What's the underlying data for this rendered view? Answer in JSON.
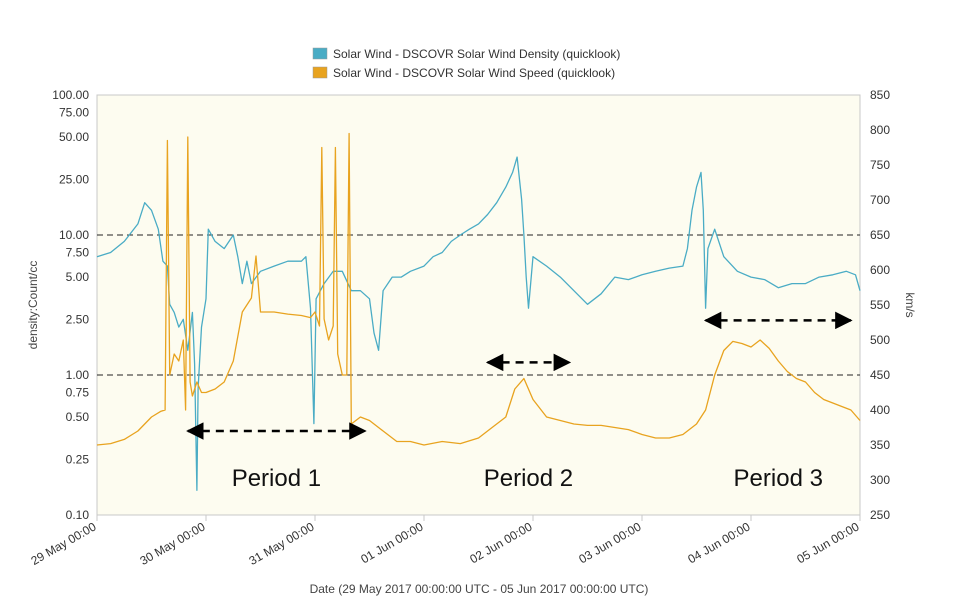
{
  "chart_data": {
    "type": "line",
    "title": "",
    "background": "#fdfcf0",
    "legend": {
      "placement": "top-center",
      "entries": [
        {
          "label": "Solar Wind - DSCOVR Solar Wind Density (quicklook)",
          "color": "#4aacc5"
        },
        {
          "label": "Solar Wind - DSCOVR Solar Wind Speed (quicklook)",
          "color": "#e8a31f"
        }
      ]
    },
    "xlabel": "Date (29 May 2017 00:00:00 UTC - 05 Jun 2017 00:00:00 UTC)",
    "x_ticks": [
      "29 May 00:00",
      "30 May 00:00",
      "31 May 00:00",
      "01 Jun 00:00",
      "02 Jun 00:00",
      "03 Jun 00:00",
      "04 Jun 00:00",
      "05 Jun 00:00"
    ],
    "xlim": [
      "2017-05-29 00:00",
      "2017-06-05 00:00"
    ],
    "y_left": {
      "label": "density:Count/cc",
      "scale": "log",
      "lim": [
        0.1,
        100
      ],
      "ticks": [
        {
          "value": 0.1,
          "label": "0.10"
        },
        {
          "value": 0.25,
          "label": "0.25"
        },
        {
          "value": 0.5,
          "label": "0.50"
        },
        {
          "value": 0.75,
          "label": "0.75"
        },
        {
          "value": 1,
          "label": "1.00"
        },
        {
          "value": 2.5,
          "label": "2.50"
        },
        {
          "value": 5,
          "label": "5.00"
        },
        {
          "value": 7.5,
          "label": "7.50"
        },
        {
          "value": 10,
          "label": "10.00"
        },
        {
          "value": 25,
          "label": "25.00"
        },
        {
          "value": 50,
          "label": "50.00"
        },
        {
          "value": 75,
          "label": "75.00"
        },
        {
          "value": 100,
          "label": "100.00"
        }
      ]
    },
    "y_right": {
      "label": "km/s",
      "scale": "linear",
      "lim": [
        250,
        850
      ],
      "ticks": [
        "250",
        "300",
        "350",
        "400",
        "450",
        "500",
        "550",
        "600",
        "650",
        "700",
        "750",
        "800",
        "850"
      ]
    },
    "reference_lines": [
      {
        "axis": "left",
        "value": 10,
        "style": "dashed"
      },
      {
        "axis": "left",
        "value": 1,
        "style": "dashed"
      }
    ],
    "series": [
      {
        "name": "Solar Wind - DSCOVR Solar Wind Density (quicklook)",
        "axis": "left",
        "color": "#4aacc5",
        "points": [
          [
            "2017-05-29 00:00",
            7
          ],
          [
            "2017-05-29 03:00",
            7.5
          ],
          [
            "2017-05-29 06:00",
            9
          ],
          [
            "2017-05-29 09:00",
            12
          ],
          [
            "2017-05-29 10:30",
            17
          ],
          [
            "2017-05-29 12:00",
            15
          ],
          [
            "2017-05-29 13:30",
            11
          ],
          [
            "2017-05-29 14:30",
            6.5
          ],
          [
            "2017-05-29 15:30",
            6
          ],
          [
            "2017-05-29 16:00",
            3.2
          ],
          [
            "2017-05-29 17:00",
            2.8
          ],
          [
            "2017-05-29 18:00",
            2.2
          ],
          [
            "2017-05-29 19:00",
            2.5
          ],
          [
            "2017-05-29 20:00",
            1.5
          ],
          [
            "2017-05-29 21:00",
            2.8
          ],
          [
            "2017-05-29 21:30",
            1.2
          ],
          [
            "2017-05-29 22:00",
            0.15
          ],
          [
            "2017-05-29 22:15",
            0.8
          ],
          [
            "2017-05-29 23:00",
            2.2
          ],
          [
            "2017-05-30 00:00",
            3.5
          ],
          [
            "2017-05-30 00:30",
            11
          ],
          [
            "2017-05-30 02:00",
            9
          ],
          [
            "2017-05-30 04:00",
            8
          ],
          [
            "2017-05-30 06:00",
            10
          ],
          [
            "2017-05-30 07:00",
            7
          ],
          [
            "2017-05-30 08:00",
            4.5
          ],
          [
            "2017-05-30 09:00",
            6.5
          ],
          [
            "2017-05-30 10:00",
            4.5
          ],
          [
            "2017-05-30 12:00",
            5.5
          ],
          [
            "2017-05-30 15:00",
            6
          ],
          [
            "2017-05-30 18:00",
            6.5
          ],
          [
            "2017-05-30 21:00",
            6.5
          ],
          [
            "2017-05-30 22:00",
            7
          ],
          [
            "2017-05-30 23:00",
            3
          ],
          [
            "2017-05-30 23:45",
            0.45
          ],
          [
            "2017-05-31 00:15",
            3.5
          ],
          [
            "2017-05-31 02:00",
            4.5
          ],
          [
            "2017-05-31 04:00",
            5.5
          ],
          [
            "2017-05-31 06:00",
            5.5
          ],
          [
            "2017-05-31 08:00",
            4
          ],
          [
            "2017-05-31 10:00",
            4
          ],
          [
            "2017-05-31 12:00",
            3.5
          ],
          [
            "2017-05-31 13:00",
            2
          ],
          [
            "2017-05-31 14:00",
            1.5
          ],
          [
            "2017-05-31 15:00",
            4
          ],
          [
            "2017-05-31 17:00",
            5
          ],
          [
            "2017-05-31 19:00",
            5
          ],
          [
            "2017-05-31 21:00",
            5.5
          ],
          [
            "2017-06-01 00:00",
            6
          ],
          [
            "2017-06-01 02:00",
            7
          ],
          [
            "2017-06-01 04:00",
            7.5
          ],
          [
            "2017-06-01 06:00",
            9
          ],
          [
            "2017-06-01 08:00",
            10
          ],
          [
            "2017-06-01 10:00",
            11
          ],
          [
            "2017-06-01 12:00",
            12
          ],
          [
            "2017-06-01 14:00",
            14
          ],
          [
            "2017-06-01 16:00",
            17
          ],
          [
            "2017-06-01 18:00",
            22
          ],
          [
            "2017-06-01 19:30",
            28
          ],
          [
            "2017-06-01 20:30",
            36
          ],
          [
            "2017-06-01 21:30",
            18
          ],
          [
            "2017-06-01 22:00",
            10
          ],
          [
            "2017-06-01 22:30",
            5
          ],
          [
            "2017-06-01 23:00",
            3
          ],
          [
            "2017-06-02 00:00",
            7
          ],
          [
            "2017-06-02 03:00",
            6
          ],
          [
            "2017-06-02 06:00",
            5
          ],
          [
            "2017-06-02 09:00",
            4
          ],
          [
            "2017-06-02 12:00",
            3.2
          ],
          [
            "2017-06-02 15:00",
            3.8
          ],
          [
            "2017-06-02 18:00",
            5
          ],
          [
            "2017-06-02 21:00",
            4.8
          ],
          [
            "2017-06-03 00:00",
            5.2
          ],
          [
            "2017-06-03 03:00",
            5.5
          ],
          [
            "2017-06-03 06:00",
            5.8
          ],
          [
            "2017-06-03 09:00",
            6
          ],
          [
            "2017-06-03 10:00",
            8
          ],
          [
            "2017-06-03 11:00",
            15
          ],
          [
            "2017-06-03 12:00",
            22
          ],
          [
            "2017-06-03 13:00",
            28
          ],
          [
            "2017-06-03 13:30",
            15
          ],
          [
            "2017-06-03 14:00",
            3
          ],
          [
            "2017-06-03 14:30",
            8
          ],
          [
            "2017-06-03 16:00",
            11
          ],
          [
            "2017-06-03 18:00",
            7
          ],
          [
            "2017-06-03 21:00",
            5.5
          ],
          [
            "2017-06-04 00:00",
            5
          ],
          [
            "2017-06-04 03:00",
            4.8
          ],
          [
            "2017-06-04 06:00",
            4.2
          ],
          [
            "2017-06-04 09:00",
            4.5
          ],
          [
            "2017-06-04 12:00",
            4.5
          ],
          [
            "2017-06-04 15:00",
            5
          ],
          [
            "2017-06-04 18:00",
            5.2
          ],
          [
            "2017-06-04 21:00",
            5.5
          ],
          [
            "2017-06-04 23:00",
            5.2
          ],
          [
            "2017-06-05 00:00",
            4
          ]
        ]
      },
      {
        "name": "Solar Wind - DSCOVR Solar Wind Speed (quicklook)",
        "axis": "right",
        "color": "#e8a31f",
        "points": [
          [
            "2017-05-29 00:00",
            350
          ],
          [
            "2017-05-29 03:00",
            352
          ],
          [
            "2017-05-29 06:00",
            358
          ],
          [
            "2017-05-29 09:00",
            370
          ],
          [
            "2017-05-29 12:00",
            390
          ],
          [
            "2017-05-29 14:00",
            398
          ],
          [
            "2017-05-29 15:00",
            400
          ],
          [
            "2017-05-29 15:30",
            785
          ],
          [
            "2017-05-29 16:00",
            450
          ],
          [
            "2017-05-29 17:00",
            480
          ],
          [
            "2017-05-29 18:00",
            470
          ],
          [
            "2017-05-29 19:00",
            500
          ],
          [
            "2017-05-29 19:30",
            400
          ],
          [
            "2017-05-29 20:00",
            790
          ],
          [
            "2017-05-29 20:30",
            440
          ],
          [
            "2017-05-29 21:00",
            420
          ],
          [
            "2017-05-29 22:00",
            440
          ],
          [
            "2017-05-29 23:00",
            425
          ],
          [
            "2017-05-30 00:00",
            425
          ],
          [
            "2017-05-30 02:00",
            430
          ],
          [
            "2017-05-30 04:00",
            440
          ],
          [
            "2017-05-30 06:00",
            470
          ],
          [
            "2017-05-30 08:00",
            540
          ],
          [
            "2017-05-30 10:00",
            560
          ],
          [
            "2017-05-30 11:00",
            620
          ],
          [
            "2017-05-30 12:00",
            540
          ],
          [
            "2017-05-30 15:00",
            540
          ],
          [
            "2017-05-30 18:00",
            537
          ],
          [
            "2017-05-30 21:00",
            535
          ],
          [
            "2017-05-30 23:00",
            532
          ],
          [
            "2017-05-31 00:00",
            540
          ],
          [
            "2017-05-31 01:00",
            520
          ],
          [
            "2017-05-31 01:30",
            775
          ],
          [
            "2017-05-31 02:00",
            530
          ],
          [
            "2017-05-31 03:00",
            500
          ],
          [
            "2017-05-31 04:00",
            520
          ],
          [
            "2017-05-31 04:30",
            775
          ],
          [
            "2017-05-31 05:00",
            480
          ],
          [
            "2017-05-31 06:00",
            450
          ],
          [
            "2017-05-31 07:00",
            450
          ],
          [
            "2017-05-31 07:30",
            795
          ],
          [
            "2017-05-31 08:00",
            380
          ],
          [
            "2017-05-31 10:00",
            390
          ],
          [
            "2017-05-31 12:00",
            385
          ],
          [
            "2017-05-31 15:00",
            370
          ],
          [
            "2017-05-31 18:00",
            355
          ],
          [
            "2017-05-31 21:00",
            355
          ],
          [
            "2017-06-01 00:00",
            350
          ],
          [
            "2017-06-01 04:00",
            355
          ],
          [
            "2017-06-01 08:00",
            352
          ],
          [
            "2017-06-01 12:00",
            360
          ],
          [
            "2017-06-01 15:00",
            375
          ],
          [
            "2017-06-01 18:00",
            390
          ],
          [
            "2017-06-01 20:00",
            430
          ],
          [
            "2017-06-01 22:00",
            445
          ],
          [
            "2017-06-02 00:00",
            415
          ],
          [
            "2017-06-02 03:00",
            390
          ],
          [
            "2017-06-02 06:00",
            385
          ],
          [
            "2017-06-02 09:00",
            380
          ],
          [
            "2017-06-02 12:00",
            378
          ],
          [
            "2017-06-02 15:00",
            378
          ],
          [
            "2017-06-02 18:00",
            375
          ],
          [
            "2017-06-02 21:00",
            372
          ],
          [
            "2017-06-03 00:00",
            365
          ],
          [
            "2017-06-03 03:00",
            360
          ],
          [
            "2017-06-03 06:00",
            360
          ],
          [
            "2017-06-03 09:00",
            365
          ],
          [
            "2017-06-03 12:00",
            380
          ],
          [
            "2017-06-03 14:00",
            400
          ],
          [
            "2017-06-03 16:00",
            450
          ],
          [
            "2017-06-03 18:00",
            485
          ],
          [
            "2017-06-03 20:00",
            498
          ],
          [
            "2017-06-03 22:00",
            495
          ],
          [
            "2017-06-04 00:00",
            490
          ],
          [
            "2017-06-04 02:00",
            500
          ],
          [
            "2017-06-04 04:00",
            488
          ],
          [
            "2017-06-04 06:00",
            470
          ],
          [
            "2017-06-04 08:00",
            455
          ],
          [
            "2017-06-04 10:00",
            445
          ],
          [
            "2017-06-04 12:00",
            440
          ],
          [
            "2017-06-04 14:00",
            425
          ],
          [
            "2017-06-04 16:00",
            415
          ],
          [
            "2017-06-04 18:00",
            410
          ],
          [
            "2017-06-04 20:00",
            405
          ],
          [
            "2017-06-04 22:00",
            400
          ],
          [
            "2017-06-05 00:00",
            385
          ]
        ]
      }
    ],
    "annotations": [
      {
        "text": "Period 1",
        "x_start": "2017-05-29 20:00",
        "x_end": "2017-05-31 11:00",
        "y_right": 370
      },
      {
        "text": "Period 2",
        "x_start": "2017-06-01 14:00",
        "x_end": "2017-06-02 08:00",
        "y_right": 468
      },
      {
        "text": "Period 3",
        "x_start": "2017-06-03 14:00",
        "x_end": "2017-06-04 22:00",
        "y_right": 528
      }
    ]
  }
}
